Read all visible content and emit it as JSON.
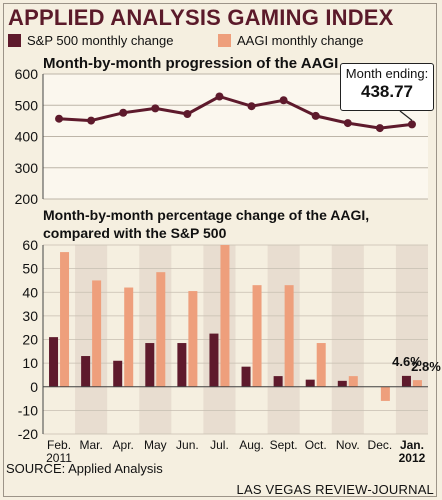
{
  "title": "APPLIED ANALYSIS GAMING INDEX",
  "legend": {
    "sp500_label": "S&P 500 monthly change",
    "aagi_label": "AAGI monthly change"
  },
  "colors": {
    "background": "#f5efe0",
    "sp500": "#5e1a2c",
    "aagi": "#ee9f7c",
    "line": "#5e1a2c",
    "shade": "#e8ddd0",
    "title": "#5b1a2a"
  },
  "callout": {
    "label": "Month ending:",
    "value": "438.77"
  },
  "source": "SOURCE: Applied Analysis",
  "credit": "LAS VEGAS REVIEW-JOURNAL",
  "chart_data": [
    {
      "type": "line",
      "title": "Month-by-month progression of the AAGI",
      "x": [
        "Feb. 2011",
        "Mar.",
        "Apr.",
        "May",
        "Jun.",
        "Jul.",
        "Aug.",
        "Sept.",
        "Oct.",
        "Nov.",
        "Dec.",
        "Jan. 2012"
      ],
      "values": [
        457,
        451,
        476,
        490,
        472,
        528,
        497,
        516,
        466,
        443,
        427,
        438.77
      ],
      "ylim": [
        200,
        600
      ],
      "yticks": [
        200,
        300,
        400,
        500,
        600
      ],
      "grid": true
    },
    {
      "type": "bar",
      "title": "Month-by-month percentage change of the AAGI, compared with the S&P 500",
      "categories": [
        "Feb. 2011",
        "Mar.",
        "Apr.",
        "May",
        "Jun.",
        "Jul.",
        "Aug.",
        "Sept.",
        "Oct.",
        "Nov.",
        "Dec.",
        "Jan. 2012"
      ],
      "series": [
        {
          "name": "S&P 500 monthly change",
          "values": [
            21,
            13,
            11,
            18.5,
            18.5,
            22.5,
            8.5,
            4.5,
            3,
            2.5,
            0,
            4.6
          ]
        },
        {
          "name": "AAGI monthly change",
          "values": [
            57,
            45,
            42,
            48.5,
            40.5,
            62,
            43,
            43,
            18.5,
            4.5,
            -6,
            2.8
          ]
        }
      ],
      "ylim": [
        -20,
        60
      ],
      "yticks": [
        -20,
        -10,
        0,
        10,
        20,
        30,
        40,
        50,
        60
      ],
      "annotations": [
        "4.6%",
        "2.8%"
      ],
      "grid": true
    }
  ]
}
